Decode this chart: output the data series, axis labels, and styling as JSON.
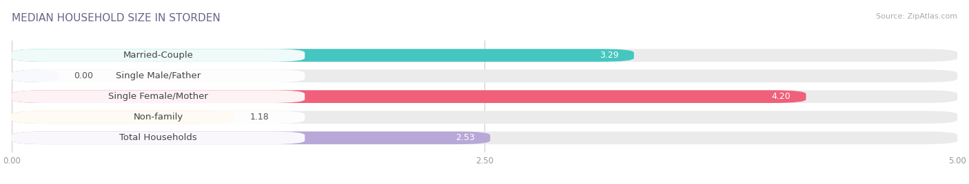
{
  "title": "MEDIAN HOUSEHOLD SIZE IN STORDEN",
  "source": "Source: ZipAtlas.com",
  "categories": [
    "Married-Couple",
    "Single Male/Father",
    "Single Female/Mother",
    "Non-family",
    "Total Households"
  ],
  "values": [
    3.29,
    0.0,
    4.2,
    1.18,
    2.53
  ],
  "colors": [
    "#45c6c0",
    "#a8b8e8",
    "#f0607a",
    "#f5c87a",
    "#b8a8d8"
  ],
  "bar_bg_color": "#ebebeb",
  "xlim": [
    0,
    5.0
  ],
  "xticks": [
    0.0,
    2.5,
    5.0
  ],
  "xtick_labels": [
    "0.00",
    "2.50",
    "5.00"
  ],
  "title_fontsize": 11,
  "label_fontsize": 9.5,
  "value_fontsize": 9,
  "bar_height": 0.62,
  "background_color": "#ffffff",
  "title_color": "#666688",
  "source_color": "#aaaaaa",
  "label_color": "#444444",
  "value_color_dark": "#555555",
  "value_color_white": "#ffffff"
}
